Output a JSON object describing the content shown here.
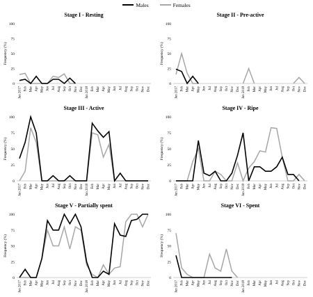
{
  "legend": {
    "males": {
      "label": "Males",
      "color": "#000000"
    },
    "females": {
      "label": "Females",
      "color": "#a6a6a6"
    }
  },
  "chart_data": [
    {
      "type": "line",
      "title": "Stage I - Resting",
      "ylabel": "Frequency (%)",
      "ylim": [
        0,
        100
      ],
      "yticks": [
        0,
        25,
        50,
        75,
        100
      ],
      "grid": false,
      "categories": [
        "Jan 2017",
        "Feb",
        "Mar",
        "Apr",
        "May",
        "Jun",
        "Jul",
        "Aug",
        "Sep",
        "Oct",
        "Nov",
        "Dec",
        "Jan 2018",
        "Feb",
        "Mar",
        "Apr",
        "May",
        "Jun",
        "Jul",
        "Aug",
        "Sep",
        "Oct",
        "Nov",
        "Dec"
      ],
      "series": [
        {
          "name": "Males",
          "values": [
            5,
            7,
            0,
            12,
            0,
            0,
            7,
            7,
            0,
            9,
            0,
            null,
            null,
            null,
            null,
            null,
            null,
            null,
            null,
            null,
            null,
            null,
            null,
            null
          ]
        },
        {
          "name": "Females",
          "values": [
            15,
            17,
            0,
            0,
            0,
            0,
            12,
            10,
            16,
            0,
            0,
            null,
            null,
            null,
            null,
            null,
            null,
            null,
            null,
            null,
            null,
            null,
            null,
            null
          ]
        }
      ]
    },
    {
      "type": "line",
      "title": "Stage II - Pre-active",
      "ylabel": "Frequency (%)",
      "ylim": [
        0,
        100
      ],
      "yticks": [
        0,
        25,
        50,
        75,
        100
      ],
      "grid": false,
      "categories": [
        "Jan 2017",
        "Feb",
        "Mar",
        "Apr",
        "May",
        "Jun",
        "Jul",
        "Aug",
        "Sep",
        "Oct",
        "Nov",
        "Dec",
        "Jan 2018",
        "Feb",
        "Mar",
        "Apr",
        "May",
        "Jun",
        "Jul",
        "Aug",
        "Sep",
        "Oct",
        "Nov",
        "Dec"
      ],
      "series": [
        {
          "name": "Males",
          "values": [
            24,
            20,
            0,
            12,
            0,
            null,
            null,
            null,
            null,
            null,
            null,
            null,
            null,
            null,
            null,
            null,
            null,
            null,
            null,
            null,
            null,
            null,
            null,
            null
          ]
        },
        {
          "name": "Females",
          "values": [
            15,
            50,
            17,
            0,
            0,
            null,
            null,
            null,
            null,
            null,
            null,
            null,
            0,
            25,
            0,
            null,
            null,
            null,
            null,
            null,
            null,
            0,
            10,
            0
          ]
        }
      ]
    },
    {
      "type": "line",
      "title": "Stage III - Active",
      "ylabel": "Frequency (%)",
      "ylim": [
        0,
        100
      ],
      "yticks": [
        0,
        25,
        50,
        75,
        100
      ],
      "grid": false,
      "categories": [
        "Jan 2017",
        "Feb",
        "Mar",
        "Apr",
        "May",
        "Jun",
        "Jul",
        "Aug",
        "Sep",
        "Oct",
        "Nov",
        "Dec",
        "Jan 2018",
        "Feb",
        "Mar",
        "Apr",
        "May",
        "Jun",
        "Jul",
        "Aug",
        "Sep",
        "Oct",
        "Nov",
        "Dec"
      ],
      "series": [
        {
          "name": "Males",
          "values": [
            35,
            60,
            100,
            75,
            0,
            0,
            8,
            0,
            0,
            8,
            0,
            0,
            0,
            90,
            78,
            68,
            77,
            0,
            12,
            0,
            0,
            0,
            0,
            0
          ]
        },
        {
          "name": "Females",
          "values": [
            0,
            15,
            83,
            60,
            0,
            0,
            0,
            0,
            0,
            0,
            0,
            0,
            0,
            75,
            72,
            37,
            57,
            0,
            0,
            0,
            0,
            0,
            0,
            0
          ]
        }
      ]
    },
    {
      "type": "line",
      "title": "Stage IV - Ripe",
      "ylabel": "Frequency (%)",
      "ylim": [
        0,
        100
      ],
      "yticks": [
        0,
        25,
        50,
        75,
        100
      ],
      "grid": false,
      "categories": [
        "Jan 2017",
        "Feb",
        "Mar",
        "Apr",
        "May",
        "Jun",
        "Jul",
        "Aug",
        "Sep",
        "Oct",
        "Nov",
        "Dec",
        "Jan 2018",
        "Feb",
        "Mar",
        "Apr",
        "May",
        "Jun",
        "Jul",
        "Aug",
        "Sep",
        "Oct",
        "Nov",
        "Dec"
      ],
      "series": [
        {
          "name": "Males",
          "values": [
            0,
            0,
            0,
            0,
            63,
            12,
            8,
            15,
            0,
            0,
            12,
            40,
            75,
            0,
            22,
            22,
            15,
            15,
            22,
            37,
            10,
            10,
            0,
            null
          ]
        },
        {
          "name": "Females",
          "values": [
            0,
            0,
            0,
            30,
            50,
            0,
            0,
            15,
            10,
            0,
            0,
            28,
            0,
            20,
            30,
            47,
            45,
            83,
            82,
            37,
            0,
            0,
            10,
            0
          ]
        }
      ]
    },
    {
      "type": "line",
      "title": "Stage V - Partially spent",
      "ylabel": "Frequency (%)",
      "ylim": [
        0,
        100
      ],
      "yticks": [
        0,
        25,
        50,
        75,
        100
      ],
      "grid": false,
      "categories": [
        "Jan 2017",
        "Feb",
        "Mar",
        "Apr",
        "May",
        "Jun",
        "Jul",
        "Aug",
        "Sep",
        "Oct",
        "Nov",
        "Dec",
        "Jan 2018",
        "Feb",
        "Mar",
        "Apr",
        "May",
        "Jun",
        "Jul",
        "Aug",
        "Sep",
        "Oct",
        "Nov",
        "Dec"
      ],
      "series": [
        {
          "name": "Males",
          "values": [
            0,
            13,
            0,
            0,
            30,
            90,
            75,
            75,
            100,
            85,
            100,
            80,
            25,
            0,
            0,
            10,
            5,
            85,
            67,
            65,
            90,
            92,
            100,
            100
          ]
        },
        {
          "name": "Females",
          "values": [
            0,
            0,
            0,
            0,
            30,
            75,
            50,
            50,
            80,
            45,
            80,
            75,
            20,
            5,
            0,
            20,
            5,
            15,
            17,
            88,
            100,
            100,
            80,
            100
          ]
        }
      ]
    },
    {
      "type": "line",
      "title": "Stage VI - Spent",
      "ylabel": "Frequency (%)",
      "ylim": [
        0,
        100
      ],
      "yticks": [
        0,
        25,
        50,
        75,
        100
      ],
      "grid": false,
      "categories": [
        "Jan 2017",
        "Feb",
        "Mar",
        "Apr",
        "May",
        "Jun",
        "Jul",
        "Aug",
        "Sep",
        "Oct",
        "Nov",
        "Dec",
        "Jan 2018",
        "Feb",
        "Mar",
        "Apr",
        "May",
        "Jun",
        "Jul",
        "Aug",
        "Sep",
        "Oct",
        "Nov",
        "Dec"
      ],
      "series": [
        {
          "name": "Males",
          "values": [
            35,
            0,
            0,
            0,
            0,
            0,
            0,
            0,
            0,
            0,
            0,
            null,
            null,
            null,
            null,
            null,
            null,
            null,
            null,
            null,
            null,
            null,
            null,
            null
          ]
        },
        {
          "name": "Females",
          "values": [
            70,
            15,
            5,
            0,
            0,
            0,
            37,
            15,
            10,
            45,
            10,
            0,
            null,
            null,
            null,
            null,
            null,
            null,
            null,
            null,
            null,
            null,
            null,
            null
          ]
        }
      ]
    }
  ]
}
